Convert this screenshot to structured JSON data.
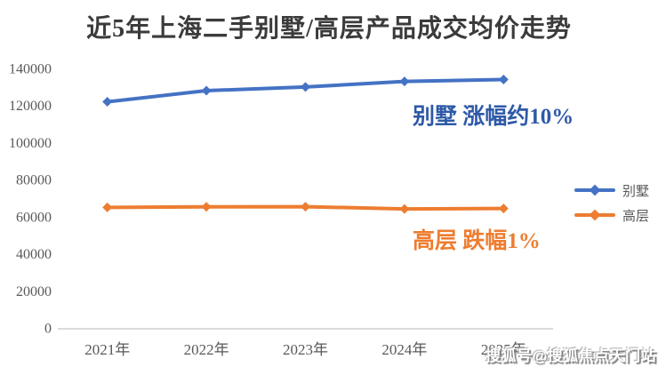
{
  "chart_data": {
    "type": "line",
    "title": "近5年上海二手别墅/高层产品成交均价走势",
    "categories": [
      "2021年",
      "2022年",
      "2023年",
      "2024年",
      "2025年"
    ],
    "series": [
      {
        "key": "villa",
        "name": "别墅",
        "color": "#4472C4",
        "values": [
          122000,
          128000,
          130000,
          133000,
          134000
        ]
      },
      {
        "key": "highrise",
        "name": "高层",
        "color": "#ED7D31",
        "values": [
          65000,
          65300,
          65400,
          64200,
          64400
        ]
      }
    ],
    "xlabel": "",
    "ylabel": "",
    "ylim": [
      0,
      140000
    ],
    "y_ticks": [
      0,
      20000,
      40000,
      60000,
      80000,
      100000,
      120000,
      140000
    ],
    "grid": false,
    "legend_position": "right",
    "marker": "diamond"
  },
  "annotations": {
    "villa": "别墅 涨幅约10%",
    "highrise": "高层 跌幅1%"
  },
  "watermark": {
    "text": "搜狐号@搜狐焦点天门站"
  },
  "colors": {
    "villa": "#4472C4",
    "highrise": "#ED7D31",
    "villa_annotation": "#2E59A7",
    "highrise_annotation": "#ED7D31",
    "axis_text": "#595959",
    "axis_line": "#DADADA",
    "title": "#3B3B3B",
    "watermark_text": "#FFFFFF"
  }
}
